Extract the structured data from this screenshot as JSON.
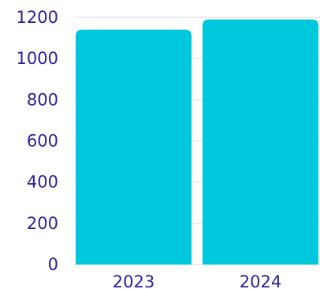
{
  "chart_data": {
    "type": "bar",
    "categories": [
      "2023",
      "2024"
    ],
    "values": [
      1140,
      1190
    ],
    "ylim": [
      0,
      1200
    ],
    "yticks": [
      0,
      200,
      400,
      600,
      800,
      1000,
      1200
    ],
    "grid": true,
    "title": "",
    "xlabel": "",
    "ylabel": ""
  },
  "colors": {
    "bar": "#00c8dc",
    "tick_text": "#2a1f9e",
    "grid": "#d9d9e3"
  }
}
